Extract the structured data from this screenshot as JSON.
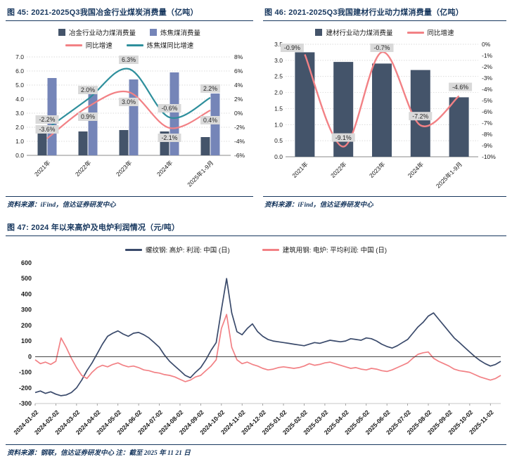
{
  "colors": {
    "navy_bar": "#44546A",
    "blue_bar": "#7585B8",
    "pink_line": "#F28185",
    "teal_line": "#2E8F9C",
    "navy_line": "#3A4A6B",
    "title_navy": "#17375E",
    "chip_bg": "#D9D9D9"
  },
  "chart_data": [
    {
      "id": "fig45",
      "type": "bar+line",
      "title": "图 45: 2021-2025Q3我国冶金行业煤炭消费量（亿吨）",
      "categories": [
        "2021年",
        "2022年",
        "2023年",
        "2024年",
        "2025年1-9月"
      ],
      "bar_series": [
        {
          "name": "冶金行业动力煤消费量",
          "color": "#44546A",
          "axis": "left",
          "values": [
            1.7,
            1.7,
            1.8,
            1.7,
            1.3
          ]
        },
        {
          "name": "炼焦煤消费量",
          "color": "#7585B8",
          "axis": "left",
          "values": [
            5.5,
            4.7,
            5.4,
            5.9,
            4.4
          ]
        }
      ],
      "line_series": [
        {
          "name": "同比增速",
          "color": "#F28185",
          "axis": "right",
          "values": [
            -3.6,
            0.9,
            3.0,
            -2.1,
            0.4
          ],
          "labels": [
            "-3.6%",
            "0.9%",
            "3.0%",
            "-2.1%",
            "0.4%"
          ]
        },
        {
          "name": "炼焦煤同比增速",
          "color": "#2E8F9C",
          "axis": "right",
          "values": [
            -2.2,
            2.0,
            6.3,
            -0.6,
            2.2
          ],
          "labels": [
            "-2.2%",
            "2.0%",
            "6.3%",
            "-0.6%",
            "2.2%"
          ]
        }
      ],
      "left_axis": {
        "min": 0,
        "max": 7.0,
        "step": 1.0,
        "unit": "亿吨"
      },
      "right_axis": {
        "min": -6,
        "max": 8,
        "step": 2,
        "unit": "%"
      },
      "grid": true,
      "source": "资料来源：iFind，信达证券研发中心"
    },
    {
      "id": "fig46",
      "type": "bar+line",
      "title": "图 46: 2021-2025Q3我国建材行业动力煤消费量（亿吨）",
      "categories": [
        "2021年",
        "2022年",
        "2023年",
        "2024年",
        "2025年1-9月"
      ],
      "bar_series": [
        {
          "name": "建材行业动力煤消费量",
          "color": "#44546A",
          "axis": "left",
          "values": [
            3.25,
            2.95,
            2.9,
            2.7,
            1.85
          ]
        }
      ],
      "line_series": [
        {
          "name": "同比增速",
          "color": "#F28185",
          "axis": "right",
          "values": [
            -0.9,
            -9.1,
            -0.7,
            -7.2,
            -4.6
          ],
          "labels": [
            "-0.9%",
            "-9.1%",
            "-0.7%",
            "-7.2%",
            "-4.6%"
          ]
        }
      ],
      "left_axis": {
        "min": 0,
        "max": 3.5,
        "step": 0.5,
        "unit": "亿吨"
      },
      "right_axis": {
        "min": -10,
        "max": 0,
        "step": 1,
        "unit": "%",
        "note": "0% at top, -10% at bottom"
      },
      "grid": true,
      "source": "资料来源：iFind，信达证券研发中心"
    },
    {
      "id": "fig47",
      "type": "line",
      "title": "图 47: 2024 年以来高炉及电炉利润情况（元/吨）",
      "x_tick_labels": [
        "2024-01-02",
        "2024-02-02",
        "2024-03-02",
        "2024-04-02",
        "2024-05-02",
        "2024-06-02",
        "2024-07-02",
        "2024-08-02",
        "2024-09-02",
        "2024-10-02",
        "2024-11-02",
        "2024-12-02",
        "2025-01-02",
        "2025-02-02",
        "2025-03-02",
        "2025-04-02",
        "2025-05-02",
        "2025-06-02",
        "2025-07-02",
        "2025-08-02",
        "2025-09-02",
        "2025-10-02",
        "2025-11-02"
      ],
      "points_per_tick": 4,
      "y_axis": {
        "min": -300,
        "max": 600,
        "step": 100
      },
      "series": [
        {
          "name": "螺纹钢: 高炉: 利润: 中国 (日)",
          "color": "#3A4A6B",
          "values": [
            -230,
            -220,
            -235,
            -225,
            -240,
            -250,
            -245,
            -230,
            -200,
            -150,
            -90,
            -40,
            20,
            80,
            130,
            150,
            165,
            145,
            130,
            150,
            155,
            140,
            120,
            90,
            60,
            10,
            -30,
            -60,
            -90,
            -120,
            -135,
            -100,
            -70,
            -20,
            40,
            90,
            300,
            500,
            280,
            160,
            140,
            180,
            210,
            160,
            130,
            110,
            100,
            95,
            90,
            85,
            80,
            75,
            70,
            80,
            90,
            85,
            95,
            105,
            100,
            95,
            100,
            115,
            110,
            105,
            120,
            115,
            100,
            80,
            65,
            55,
            70,
            90,
            110,
            150,
            190,
            220,
            260,
            280,
            240,
            200,
            160,
            120,
            90,
            60,
            30,
            0,
            -25,
            -45,
            -60,
            -50,
            -30
          ]
        },
        {
          "name": "建筑用钢: 电炉: 平均利润: 中国 (日)",
          "color": "#F28185",
          "values": [
            -20,
            -45,
            -35,
            -50,
            -30,
            120,
            60,
            -10,
            -70,
            -120,
            -140,
            -100,
            -70,
            -55,
            -65,
            -50,
            -40,
            -55,
            -65,
            -60,
            -70,
            -85,
            -90,
            -100,
            -105,
            -115,
            -120,
            -130,
            -145,
            -160,
            -150,
            -130,
            -120,
            -90,
            -60,
            -20,
            180,
            270,
            60,
            -20,
            -45,
            -35,
            -50,
            -60,
            -75,
            -85,
            -80,
            -70,
            -65,
            -70,
            -75,
            -70,
            -60,
            -45,
            -55,
            -50,
            -40,
            -35,
            -45,
            -55,
            -65,
            -75,
            -70,
            -80,
            -85,
            -75,
            -80,
            -90,
            -95,
            -85,
            -70,
            -55,
            -40,
            -10,
            15,
            25,
            30,
            -10,
            -30,
            -45,
            -60,
            -80,
            -90,
            -95,
            -100,
            -115,
            -130,
            -140,
            -150,
            -140,
            -120
          ]
        }
      ],
      "source": "资料来源：钢联，信达证券研发中心  注：截至 2025 年 11 21 日"
    }
  ]
}
